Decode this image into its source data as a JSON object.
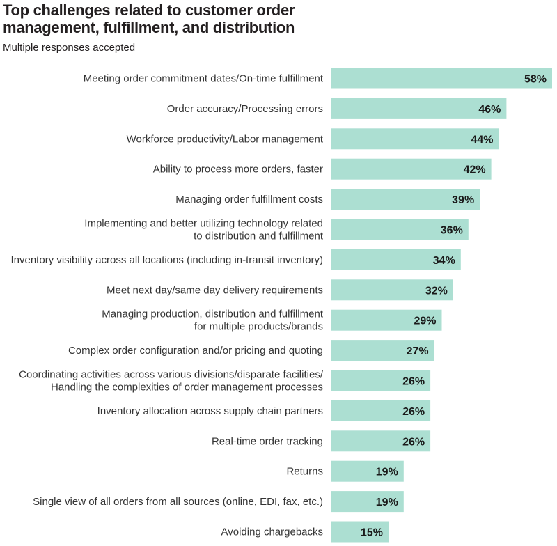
{
  "title": "Top challenges related to customer order management, fulfillment, and distribution",
  "subtitle": "Multiple responses accepted",
  "colors": {
    "bar": "#acdfd2",
    "label_text": "#333333",
    "value_text": "#1a1a1a"
  },
  "chart_data": {
    "type": "bar",
    "orientation": "horizontal",
    "title": "Top challenges related to customer order management, fulfillment, and distribution",
    "subtitle": "Multiple responses accepted",
    "categories": [
      "Meeting order commitment dates/On-time fulfillment",
      "Order accuracy/Processing errors",
      "Workforce productivity/Labor management",
      "Ability to process more orders, faster",
      "Managing order fulfillment costs",
      "Implementing and better utilizing technology related to distribution and fulfillment",
      "Inventory visibility across all locations (including in-transit inventory)",
      "Meet next day/same day delivery requirements",
      "Managing production, distribution and fulfillment for multiple products/brands",
      "Complex order configuration and/or pricing and quoting",
      "Coordinating activities across various divisions/disparate facilities/ Handling the complexities of order management processes",
      "Inventory allocation across supply chain partners",
      "Real-time order tracking",
      "Returns",
      "Single view of all orders from all sources (online, EDI, fax, etc.)",
      "Avoiding chargebacks"
    ],
    "category_lines": [
      [
        "Meeting order commitment dates/On-time fulfillment"
      ],
      [
        "Order accuracy/Processing errors"
      ],
      [
        "Workforce productivity/Labor management"
      ],
      [
        "Ability to process more orders, faster"
      ],
      [
        "Managing order fulfillment costs"
      ],
      [
        "Implementing and better utilizing technology related",
        "to distribution and fulfillment"
      ],
      [
        "Inventory visibility across all locations (including in-transit inventory)"
      ],
      [
        "Meet next day/same day delivery requirements"
      ],
      [
        "Managing production, distribution and fulfillment",
        "for multiple products/brands"
      ],
      [
        "Complex order configuration and/or pricing and quoting"
      ],
      [
        "Coordinating activities across various divisions/disparate facilities/",
        "Handling the complexities of order management processes"
      ],
      [
        "Inventory allocation across supply chain partners"
      ],
      [
        "Real-time order tracking"
      ],
      [
        "Returns"
      ],
      [
        "Single view of all orders from all sources (online, EDI, fax, etc.)"
      ],
      [
        "Avoiding chargebacks"
      ]
    ],
    "values": [
      58,
      46,
      44,
      42,
      39,
      36,
      34,
      32,
      29,
      27,
      26,
      26,
      26,
      19,
      19,
      15
    ],
    "value_labels": [
      "58%",
      "46%",
      "44%",
      "42%",
      "39%",
      "36%",
      "34%",
      "32%",
      "29%",
      "27%",
      "26%",
      "26%",
      "26%",
      "19%",
      "19%",
      "15%"
    ],
    "unit": "%",
    "xlim": [
      0,
      58
    ],
    "grid": false,
    "legend": "none"
  }
}
